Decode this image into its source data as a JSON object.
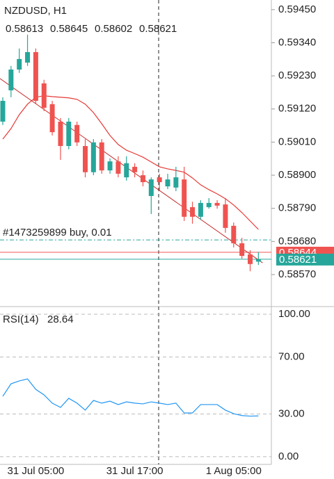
{
  "chart_data": {
    "type": "candlestick",
    "title": "NZDUSD, H1",
    "categories": [
      null,
      null,
      null,
      null,
      "31 Jul 05:00",
      null,
      null,
      null,
      null,
      null,
      null,
      null,
      null,
      null,
      null,
      null,
      "31 Jul 17:00",
      null,
      null,
      null,
      null,
      null,
      null,
      null,
      null,
      null,
      null,
      null,
      "1 Aug 05:00",
      null,
      null,
      null
    ],
    "open": [
      0.59078,
      0.59182,
      0.59251,
      0.59274,
      0.59309,
      0.59205,
      0.59136,
      0.59078,
      0.58997,
      0.59067,
      0.58997,
      0.5891,
      0.59009,
      0.58916,
      0.58946,
      0.58893,
      0.58928,
      0.589,
      0.58831,
      0.58893,
      0.58863,
      0.58859,
      0.58886,
      0.58794,
      0.58762,
      0.58794,
      0.58808,
      0.58803,
      0.58732,
      0.58674,
      0.58637,
      0.58613
    ],
    "high": [
      0.59159,
      0.59263,
      0.59321,
      0.59367,
      0.59321,
      0.59217,
      0.59147,
      0.5909,
      0.5909,
      0.59078,
      0.5902,
      0.5902,
      0.5902,
      0.58956,
      0.58963,
      0.58963,
      0.5894,
      0.58916,
      0.58893,
      0.58905,
      0.58905,
      0.58928,
      0.58928,
      0.58812,
      0.58817,
      0.58824,
      0.58817,
      0.58824,
      0.58743,
      0.58692,
      0.58651,
      0.58645
    ],
    "low": [
      0.59067,
      0.59159,
      0.5924,
      0.59263,
      0.59136,
      0.59113,
      0.59032,
      0.58951,
      0.58986,
      0.58997,
      0.58893,
      0.589,
      0.58905,
      0.58905,
      0.58893,
      0.58882,
      0.58893,
      0.58863,
      0.58771,
      0.58847,
      0.58854,
      0.58847,
      0.58748,
      0.58739,
      0.58752,
      0.58789,
      0.58789,
      0.58709,
      0.5866,
      0.58623,
      0.58581,
      0.58602
    ],
    "close": [
      0.59147,
      0.59251,
      0.59286,
      0.59309,
      0.59147,
      0.59124,
      0.59043,
      0.58997,
      0.59078,
      0.59009,
      0.5891,
      0.59009,
      0.58916,
      0.58946,
      0.58905,
      0.5894,
      0.5891,
      0.58877,
      0.58886,
      0.58877,
      0.58886,
      0.58893,
      0.58762,
      0.58762,
      0.58808,
      0.58808,
      0.58799,
      0.58725,
      0.58674,
      0.58632,
      0.58605,
      0.58621
    ],
    "up_color": "#26a69a",
    "down_color": "#ef5350",
    "moving_average": {
      "color": "#e53935",
      "values": [
        0.5902,
        0.59055,
        0.59101,
        0.59136,
        0.59159,
        0.59164,
        0.59161,
        0.59159,
        0.59157,
        0.59152,
        0.59136,
        0.59108,
        0.59071,
        0.59032,
        0.59002,
        0.58983,
        0.58972,
        0.5896,
        0.58944,
        0.58928,
        0.58921,
        0.58916,
        0.5891,
        0.58891,
        0.58868,
        0.58852,
        0.58838,
        0.58822,
        0.58801,
        0.58776,
        0.58748,
        0.5872
      ]
    },
    "trendline": {
      "color": "#c62828",
      "values": [
        0.59221,
        0.58609
      ]
    },
    "position": {
      "label": "#1473259899 buy, 0.01",
      "price": 0.58685,
      "color": "#26a69a"
    },
    "price_labels": [
      {
        "value": 0.58644,
        "color": "#ef5350"
      },
      {
        "value": 0.58621,
        "color": "#26a69a"
      }
    ],
    "ylim": [
      0.58466,
      0.59482
    ],
    "yticks": [
      {
        "value": 0.5945,
        "label": "0.59450"
      },
      {
        "value": 0.5934,
        "label": "0.59340"
      },
      {
        "value": 0.5923,
        "label": "0.59230"
      },
      {
        "value": 0.5912,
        "label": "0.59120"
      },
      {
        "value": 0.5901,
        "label": "0.59010"
      },
      {
        "value": 0.589,
        "label": "0.58900"
      },
      {
        "value": 0.5879,
        "label": "0.58790"
      },
      {
        "value": 0.5868,
        "label": "0.58680"
      },
      {
        "value": 0.5857,
        "label": "0.58570"
      }
    ],
    "indicator": {
      "type": "line",
      "title": "RSI(14)",
      "color": "#2196f3",
      "values": [
        42.4,
        51.2,
        53.2,
        54.6,
        47.3,
        43.4,
        37.6,
        34.6,
        41.0,
        37.6,
        32.7,
        39.5,
        37.6,
        39.0,
        36.6,
        38.5,
        37.6,
        37.1,
        38.5,
        37.6,
        36.6,
        37.6,
        30.7,
        30.7,
        36.6,
        36.6,
        36.6,
        32.7,
        30.2,
        28.9,
        28.5,
        28.64
      ],
      "ylim": [
        -5.4,
        104.9
      ],
      "yticks": [
        {
          "value": 100,
          "label": "100.00"
        },
        {
          "value": 70,
          "label": "70.00"
        },
        {
          "value": 30,
          "label": "30.00"
        },
        {
          "value": 0,
          "label": "0.00"
        }
      ]
    }
  }
}
